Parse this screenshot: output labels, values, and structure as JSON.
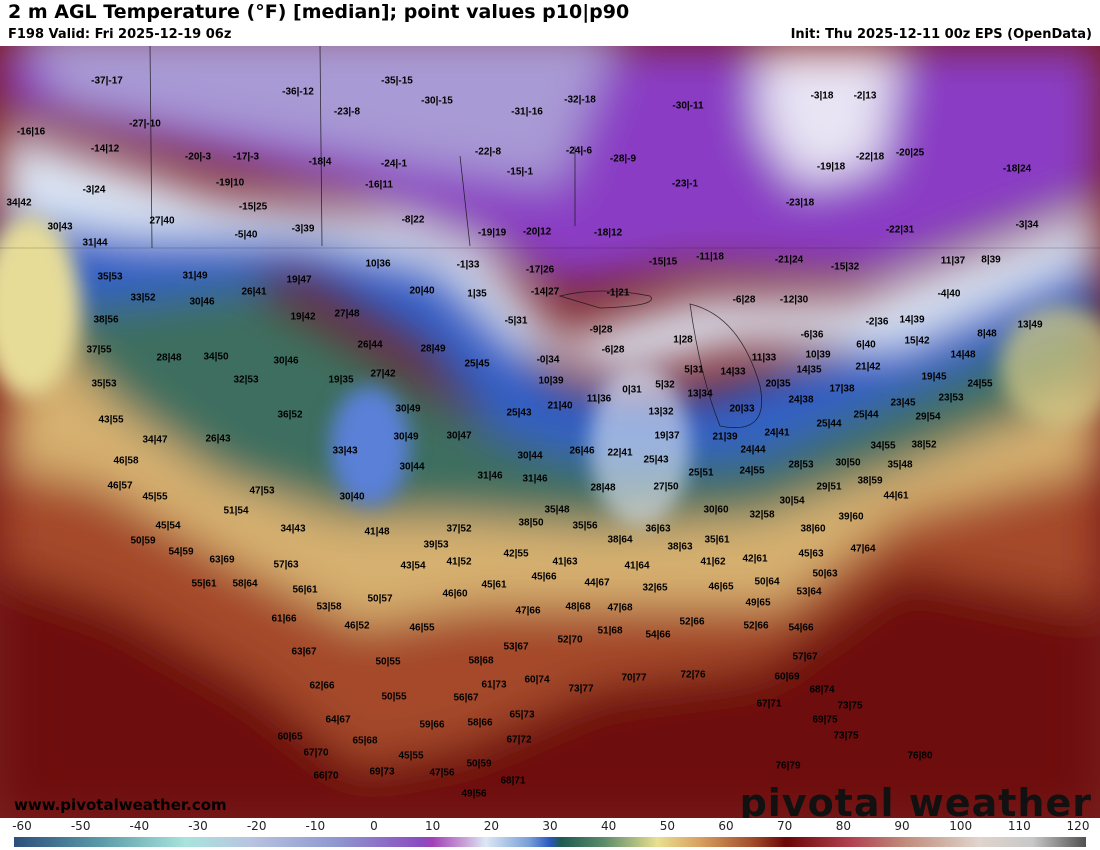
{
  "header": {
    "title": "2 m AGL Temperature (°F) [median]; point values p10|p90",
    "valid": "F198 Valid: Fri 2025-12-19 06z",
    "init": "Init: Thu 2025-12-11 00z EPS (OpenData)"
  },
  "footer": {
    "website": "www.pivotalweather.com",
    "brand": "pivotal weather"
  },
  "colorbar": {
    "unit": "°F",
    "ticks": [
      "-60",
      "-50",
      "-40",
      "-30",
      "-20",
      "-10",
      "0",
      "10",
      "20",
      "30",
      "40",
      "50",
      "60",
      "70",
      "80",
      "90",
      "100",
      "110",
      "120"
    ]
  },
  "point_values": [
    "-37|-17",
    "-36|-12",
    "-35|-15",
    "-30|-15",
    "-31|-16",
    "-32|-18",
    "-30|-11",
    "-3|18",
    "-2|13",
    "-16|16",
    "-27|-10",
    "-23|-8",
    "-22|-8",
    "-24|-6",
    "-28|-9",
    "-14|12",
    "-20|-3",
    "-17|-3",
    "-18|4",
    "-24|-1",
    "-15|-1",
    "-23|-1",
    "-22|18",
    "-20|25",
    "-19|18",
    "-18|24",
    "-3|24",
    "-19|10",
    "-16|11",
    "-23|18",
    "-15|25",
    "34|42",
    "30|43",
    "-8|22",
    "-22|31",
    "-3|34",
    "27|40",
    "-5|40",
    "-3|39",
    "-19|19",
    "-20|12",
    "-18|12",
    "31|44",
    "10|36",
    "-1|33",
    "-17|26",
    "-14|27",
    "-15|15",
    "-11|18",
    "-21|24",
    "-15|32",
    "11|37",
    "8|39",
    "35|53",
    "31|49",
    "19|47",
    "20|40",
    "1|35",
    "-1|21",
    "-6|28",
    "-12|30",
    "-4|40",
    "33|52",
    "30|46",
    "26|41",
    "19|42",
    "27|48",
    "-5|31",
    "-9|28",
    "38|56",
    "-2|36",
    "14|39",
    "13|49",
    "8|48",
    "-6|36",
    "15|42",
    "1|28",
    "37|55",
    "28|48",
    "34|50",
    "30|46",
    "26|44",
    "28|49",
    "-6|28",
    "-0|34",
    "25|45",
    "10|39",
    "6|40",
    "14|48",
    "11|33",
    "21|42",
    "5|31",
    "14|33",
    "14|35",
    "35|53",
    "32|53",
    "19|35",
    "27|42",
    "10|39",
    "19|45",
    "24|55",
    "20|35",
    "17|38",
    "0|31",
    "5|32",
    "11|36",
    "13|34",
    "23|53",
    "24|38",
    "43|55",
    "36|52",
    "30|49",
    "25|43",
    "21|40",
    "20|33",
    "13|32",
    "25|44",
    "23|45",
    "29|54",
    "34|47",
    "26|43",
    "30|49",
    "30|47",
    "19|37",
    "21|39",
    "24|41",
    "25|44",
    "34|55",
    "38|52",
    "33|43",
    "24|44",
    "30|44",
    "26|46",
    "22|41",
    "25|43",
    "46|58",
    "30|44",
    "31|46",
    "31|46",
    "28|53",
    "30|50",
    "35|48",
    "46|57",
    "24|55",
    "25|51",
    "28|48",
    "27|50",
    "29|51",
    "38|59",
    "45|55",
    "47|53",
    "30|40",
    "44|61",
    "30|54",
    "51|54",
    "35|48",
    "30|60",
    "32|58",
    "39|60",
    "45|54",
    "34|43",
    "41|48",
    "37|52",
    "38|50",
    "35|56",
    "36|63",
    "38|60",
    "50|59",
    "39|53",
    "38|64",
    "38|63",
    "35|61",
    "47|64",
    "54|59",
    "63|69",
    "45|63",
    "42|55",
    "41|63",
    "41|62",
    "42|61",
    "41|64",
    "57|63",
    "43|54",
    "41|52",
    "45|66",
    "50|63",
    "55|61",
    "58|64",
    "56|61",
    "45|61",
    "44|67",
    "32|65",
    "46|65",
    "50|64",
    "46|60",
    "53|64",
    "50|57",
    "53|58",
    "47|66",
    "48|68",
    "47|68",
    "49|65",
    "61|66",
    "46|52",
    "46|55",
    "52|66",
    "52|66",
    "54|66",
    "52|70",
    "51|68",
    "54|66",
    "63|67",
    "50|55",
    "53|67",
    "58|68",
    "57|67",
    "62|66",
    "61|73",
    "60|74",
    "73|77",
    "70|77",
    "72|76",
    "60|69",
    "68|74",
    "50|55",
    "56|67",
    "67|71",
    "73|75",
    "64|67",
    "59|66",
    "58|66",
    "65|73",
    "69|75",
    "60|65",
    "65|68",
    "67|72",
    "73|75",
    "67|70",
    "45|55",
    "76|80",
    "50|59",
    "66|70",
    "69|73",
    "47|56",
    "68|71",
    "76|79",
    "49|56"
  ]
}
